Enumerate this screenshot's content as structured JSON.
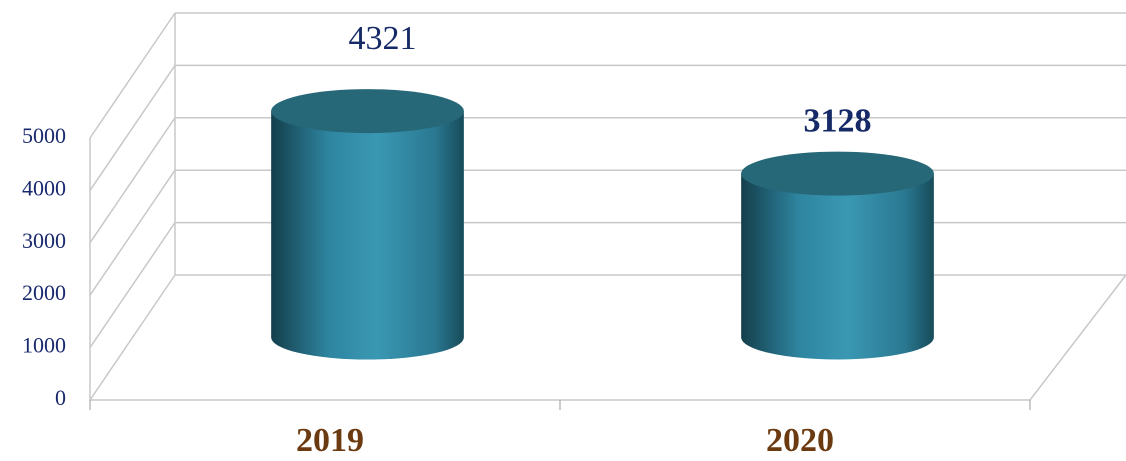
{
  "chart_data": {
    "type": "bar3d",
    "categories": [
      "2019",
      "2020"
    ],
    "values": [
      4321,
      3128
    ],
    "color": "#2f8aa2",
    "ylim": [
      0,
      5000
    ],
    "yticks": [
      0,
      1000,
      2000,
      3000,
      4000,
      5000
    ],
    "grid": true
  }
}
